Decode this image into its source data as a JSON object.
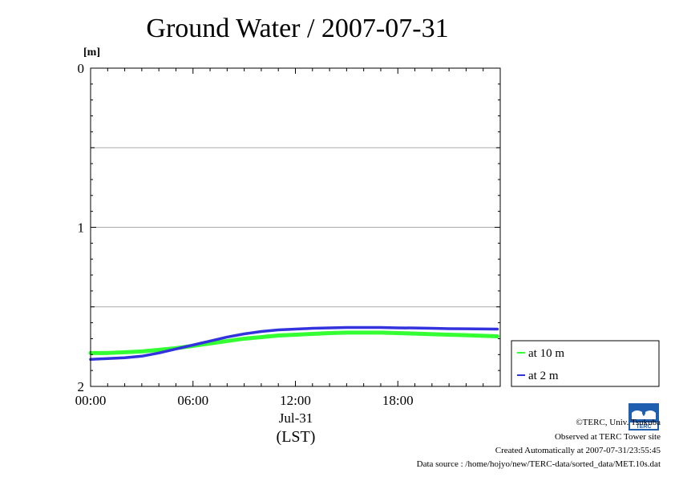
{
  "chart_data": {
    "type": "line",
    "title": "Ground Water / 2007-07-31",
    "ylabel": "[m]",
    "xlabel": "(LST)",
    "x_date_label": "Jul-31",
    "x_ticks": [
      "00:00",
      "06:00",
      "12:00",
      "18:00"
    ],
    "y_ticks": [
      "0",
      "1",
      "2"
    ],
    "ylim": [
      2,
      0
    ],
    "xlim": [
      "00:00",
      "24:00"
    ],
    "y_inverted": true,
    "grid": "horizontal",
    "legend_placement": "right, outside plot",
    "x": [
      "00:00",
      "01:00",
      "02:00",
      "03:00",
      "04:00",
      "05:00",
      "06:00",
      "07:00",
      "08:00",
      "09:00",
      "10:00",
      "11:00",
      "12:00",
      "13:00",
      "14:00",
      "15:00",
      "16:00",
      "17:00",
      "18:00",
      "19:00",
      "20:00",
      "21:00",
      "22:00",
      "23:50"
    ],
    "series": [
      {
        "name": "at 10 m",
        "color": "#33ff33",
        "values": [
          1.79,
          1.79,
          1.785,
          1.78,
          1.77,
          1.76,
          1.745,
          1.73,
          1.715,
          1.7,
          1.69,
          1.68,
          1.675,
          1.67,
          1.665,
          1.662,
          1.662,
          1.662,
          1.665,
          1.668,
          1.672,
          1.675,
          1.678,
          1.685
        ]
      },
      {
        "name": "at 2 m",
        "color": "#3333dd",
        "values": [
          1.83,
          1.825,
          1.82,
          1.81,
          1.79,
          1.765,
          1.74,
          1.715,
          1.69,
          1.67,
          1.655,
          1.645,
          1.64,
          1.635,
          1.632,
          1.63,
          1.63,
          1.63,
          1.632,
          1.633,
          1.635,
          1.637,
          1.638,
          1.64
        ]
      }
    ]
  },
  "footer": {
    "copyright": "©TERC, Univ. Tsukuba",
    "observed": "Observed at TERC Tower site",
    "created": "Created Automatically at 2007-07-31/23:55:45",
    "source": "Data source : /home/hojyo/new/TERC-data/sorted_data/MET.10s.dat",
    "logo_text": "TERC"
  }
}
